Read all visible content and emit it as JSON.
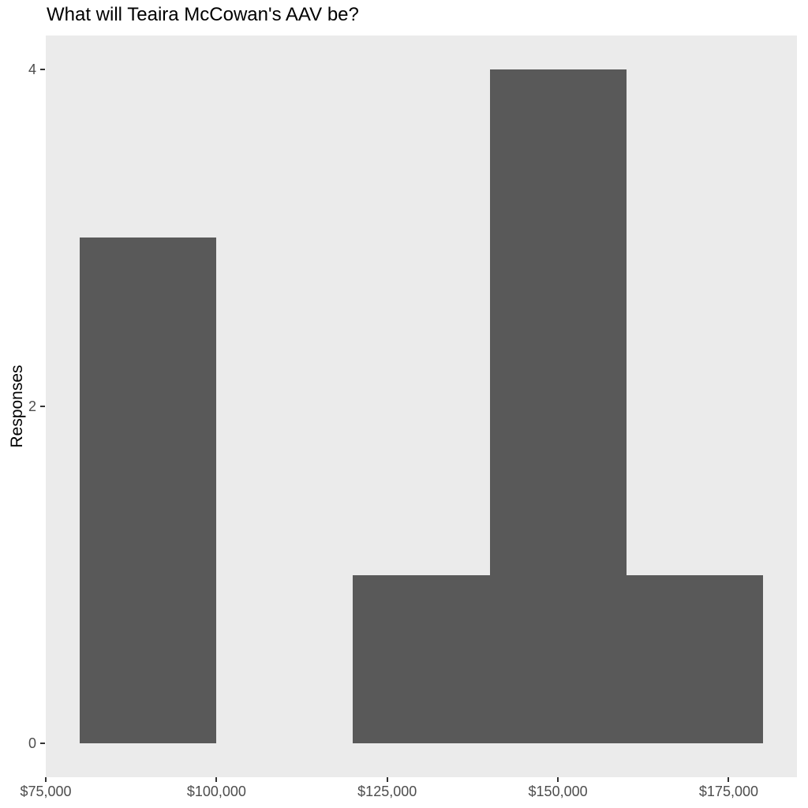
{
  "chart_data": {
    "type": "bar",
    "subtype": "histogram",
    "title": "What will Teaira McCowan's AAV be?",
    "xlabel": "",
    "ylabel": "Responses",
    "bars": [
      {
        "bin_start": 80000,
        "bin_end": 100000,
        "responses": 3
      },
      {
        "bin_start": 120000,
        "bin_end": 140000,
        "responses": 1
      },
      {
        "bin_start": 140000,
        "bin_end": 160000,
        "responses": 4
      },
      {
        "bin_start": 160000,
        "bin_end": 180000,
        "responses": 1
      }
    ],
    "x_ticks": [
      {
        "value": 75000,
        "label": "$75,000"
      },
      {
        "value": 100000,
        "label": "$100,000"
      },
      {
        "value": 125000,
        "label": "$125,000"
      },
      {
        "value": 150000,
        "label": "$150,000"
      },
      {
        "value": 175000,
        "label": "$175,000"
      }
    ],
    "y_ticks": [
      {
        "value": 0,
        "label": "0"
      },
      {
        "value": 2,
        "label": "2"
      },
      {
        "value": 4,
        "label": "4"
      }
    ],
    "xlim": [
      75000,
      185000
    ],
    "ylim": [
      -0.2,
      4.2
    ],
    "grid": false,
    "legend_position": "none",
    "colors": {
      "bar_fill": "#595959",
      "panel_background": "#EBEBEB",
      "page_background": "#FFFFFF",
      "tick_label": "#4D4D4D",
      "tick_mark": "#333333",
      "title_text": "#000000",
      "axis_title_text": "#000000"
    }
  }
}
